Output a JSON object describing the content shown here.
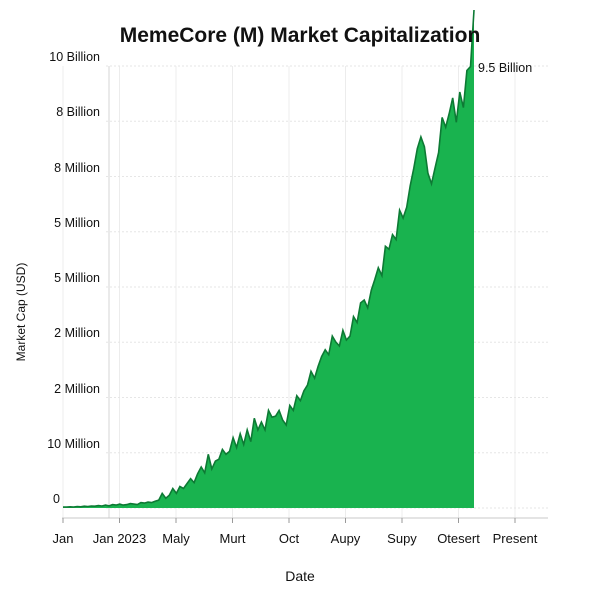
{
  "chart_data": {
    "type": "area",
    "title": "MemeCore (M) Market Capitalization",
    "xlabel": "Date",
    "ylabel": "Market Cap (USD)",
    "x_tick_labels": [
      "Jan",
      "Jan 2023",
      "Maly",
      "Murt",
      "Oct",
      "Aupy",
      "Supy",
      "Otesert",
      "Present"
    ],
    "y_tick_labels": [
      "0",
      "10 Million",
      "2 Million",
      "2 Million",
      "5 Million",
      "5 Million",
      "8 Million",
      "8 Billion",
      "10 Billion"
    ],
    "annotation": "9.5 Billion",
    "grid": true,
    "colors": {
      "fill": "#19b34f",
      "line": "#0d7a34"
    },
    "series": [
      {
        "values": [
          0.1,
          0.1,
          0.12,
          0.1,
          0.15,
          0.12,
          0.18,
          0.15,
          0.2,
          0.18,
          0.25,
          0.2,
          0.3,
          0.22,
          0.35,
          0.3,
          0.4,
          0.3,
          0.35,
          0.45,
          0.4,
          0.35,
          0.55,
          0.5,
          0.6,
          0.55,
          0.7,
          0.8,
          1.5,
          1.0,
          1.3,
          2.0,
          1.5,
          2.2,
          2.0,
          2.5,
          3.0,
          2.6,
          3.5,
          4.2,
          3.6,
          5.5,
          4.0,
          4.8,
          5.0,
          6.0,
          5.5,
          5.8,
          7.2,
          6.2,
          7.6,
          6.5,
          8.0,
          6.8,
          9.2,
          8.0,
          8.8,
          8.0,
          10.0,
          9.3,
          9.4,
          10.0,
          9.0,
          8.5,
          10.5,
          10.0,
          11.5,
          11.0,
          12.0,
          12.6,
          14.0,
          13.3,
          14.5,
          15.5,
          16.2,
          15.7,
          17.6,
          17.0,
          16.6,
          18.2,
          17.2,
          17.6,
          19.6,
          19.0,
          21.0,
          21.3,
          20.5,
          22.3,
          23.4,
          24.6,
          23.8,
          26.8,
          26.5,
          28.0,
          27.5,
          30.5,
          29.7,
          30.8,
          33.0,
          34.8,
          36.8,
          38.0,
          37.0,
          34.3,
          33.2,
          34.8,
          36.4,
          40.0,
          39.0,
          40.4,
          42.0,
          39.5,
          42.6,
          41.0,
          44.8,
          45.2,
          51.0
        ]
      }
    ]
  }
}
